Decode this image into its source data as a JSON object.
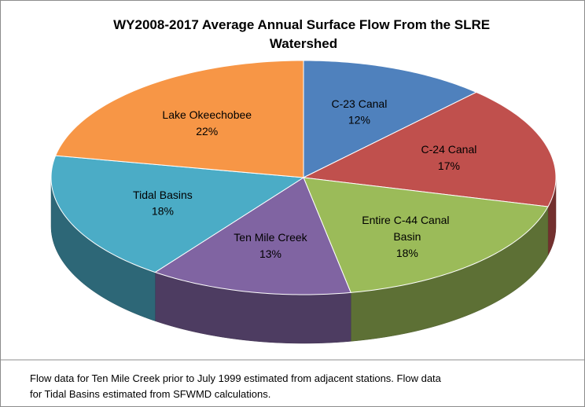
{
  "chart_data": {
    "type": "pie3d",
    "title": "WY2008-2017 Average Annual Surface Flow From the SLRE Watershed",
    "categories": [
      "C-23 Canal",
      "C-24 Canal",
      "Entire C-44 Canal Basin",
      "Ten Mile Creek",
      "Tidal Basins",
      "Lake Okeechobee"
    ],
    "values": [
      12,
      17,
      18,
      13,
      18,
      22
    ],
    "value_labels": [
      "12%",
      "17%",
      "18%",
      "13%",
      "18%",
      "22%"
    ],
    "colors": [
      "#4f81bd",
      "#c0504d",
      "#9bbb59",
      "#8064a2",
      "#4bacc6",
      "#f79646"
    ],
    "footnote": "Flow data for Ten Mile Creek prior to July 1999 estimated from adjacent stations.  Flow data for Tidal Basins estimated from SFWMD calculations."
  }
}
